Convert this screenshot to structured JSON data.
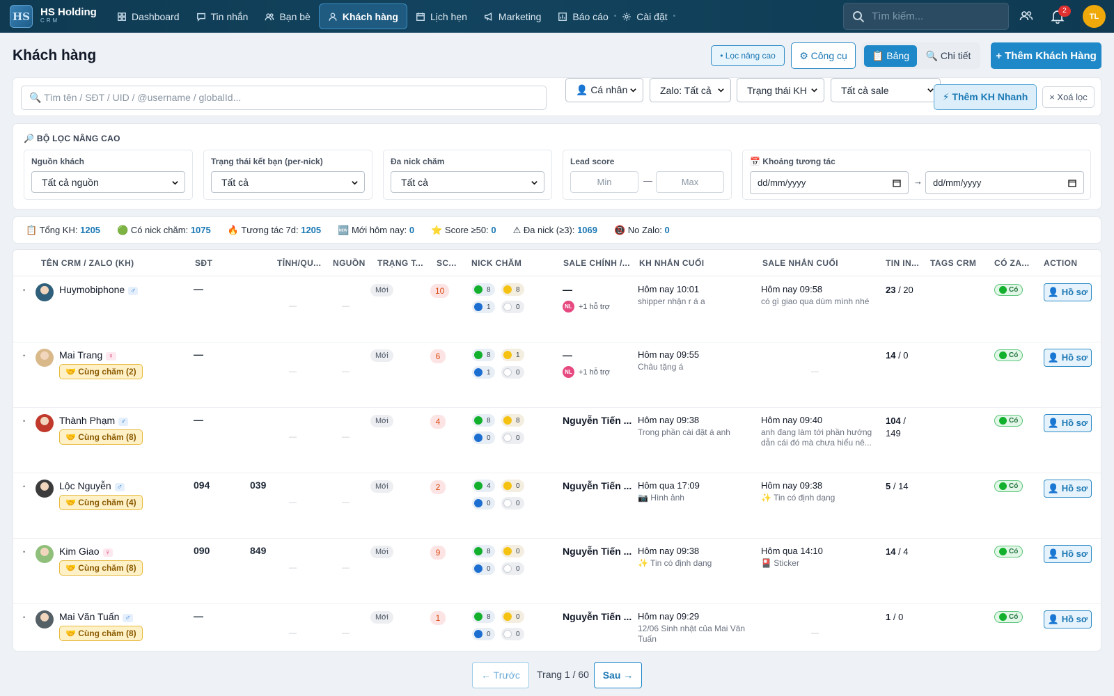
{
  "app": {
    "logo_text": "HS",
    "brand_name": "HS Holding",
    "brand_sub": "CRM"
  },
  "nav": [
    {
      "label": "Dashboard",
      "icon": "grid-icon"
    },
    {
      "label": "Tin nhắn",
      "icon": "chat-icon"
    },
    {
      "label": "Bạn bè",
      "icon": "friends-icon"
    },
    {
      "label": "Khách hàng",
      "icon": "user-icon",
      "active": true
    },
    {
      "label": "Lịch hẹn",
      "icon": "calendar-icon"
    },
    {
      "label": "Marketing",
      "icon": "megaphone-icon"
    },
    {
      "label": "Báo cáo",
      "icon": "chart-icon"
    },
    {
      "label": "Cài đặt",
      "icon": "gear-icon"
    }
  ],
  "topbar": {
    "search_placeholder": "Tìm kiếm...",
    "notif_count": "2",
    "user_initials": "TL"
  },
  "page": {
    "title": "Khách hàng"
  },
  "actions": {
    "filter_adv": "• Lọc nâng cao",
    "tools": "⚙ Công cụ",
    "view_table": "📋 Bảng",
    "view_detail": "🔍 Chi tiết",
    "add_customer": "+ Thêm Khách Hàng"
  },
  "filterbar": {
    "search_placeholder": "🔍 Tìm tên / SĐT / UID / @username / globalId...",
    "type_select": "👤 Cá nhân",
    "zalo_select": "Zalo: Tất cả",
    "status_select": "Trạng thái KH",
    "sale_select": "Tất cả sale",
    "quick_add": "⚡ Thêm KH Nhanh",
    "clear": "× Xoá lọc"
  },
  "advanced": {
    "title": "🔎 BỘ LỌC NÂNG CAO",
    "source": {
      "label": "Nguồn khách",
      "value": "Tất cả nguồn"
    },
    "friend_status": {
      "label": "Trạng thái kết bạn (per-nick)",
      "value": "Tất cả"
    },
    "multi_nick": {
      "label": "Đa nick chăm",
      "value": "Tất cả"
    },
    "lead_score": {
      "label": "Lead score",
      "min_placeholder": "Min",
      "sep": "—",
      "max_placeholder": "Max"
    },
    "interaction": {
      "label": "📅 Khoảng tương tác",
      "from": "dd/mm/yyyy",
      "arrow": "→",
      "to": "dd/mm/yyyy"
    }
  },
  "stats": [
    {
      "label": "📋 Tổng KH:",
      "value": "1205"
    },
    {
      "label": "🟢 Có nick chăm:",
      "value": "1075"
    },
    {
      "label": "🔥 Tương tác 7d:",
      "value": "1205"
    },
    {
      "label": "🆕 Mới hôm nay:",
      "value": "0"
    },
    {
      "label": "⭐ Score ≥50:",
      "value": "0"
    },
    {
      "label": "⚠ Đa nick (≥3):",
      "value": "1069"
    },
    {
      "label": "📵 No Zalo:",
      "value": "0"
    }
  ],
  "table": {
    "columns": [
      "TÊN CRM / ZALO (KH)",
      "SĐT",
      "TỈNH/QU...",
      "NGUỒN",
      "TRẠNG T...",
      "SC...",
      "NICK CHĂM",
      "SALE CHÍNH /...",
      "KH NHẮN CUỐI",
      "SALE NHẮN CUỐI",
      "TIN IN...",
      "TAGS CRM",
      "CÓ ZA...",
      "ACTION"
    ],
    "rows": [
      {
        "name": "Huymobiphone",
        "gender": "♂",
        "cham": "",
        "phone_a": "—",
        "phone_b": "",
        "status": "Mới",
        "score": "10",
        "nick": [
          "8",
          "8",
          "1",
          "0"
        ],
        "sale": "—",
        "hotro": "+1 hỗ trợ",
        "kh_time": "Hôm nay 10:01",
        "kh_msg": "shipper nhận r á a",
        "sale_time": "Hôm nay 09:58",
        "sale_msg": "có gì giao qua dùm mình nhé",
        "tin": "23",
        "tin2": " / 20",
        "zalo": "Có",
        "action": "👤 Hồ sơ"
      },
      {
        "name": "Mai Trang",
        "gender": "♀",
        "cham": "🤝 Cùng chăm (2)",
        "phone_a": "—",
        "phone_b": "",
        "status": "Mới",
        "score": "6",
        "nick": [
          "8",
          "1",
          "1",
          "0"
        ],
        "sale": "—",
        "hotro": "+1 hỗ trợ",
        "kh_time": "Hôm nay 09:55",
        "kh_msg": "Châu tặng á",
        "sale_time": "",
        "sale_msg": "",
        "tin": "14",
        "tin2": " / 0",
        "zalo": "Có",
        "action": "👤 Hồ sơ"
      },
      {
        "name": "Thành Phạm",
        "gender": "♂",
        "cham": "🤝 Cùng chăm (8)",
        "phone_a": "—",
        "phone_b": "",
        "status": "Mới",
        "score": "4",
        "nick": [
          "8",
          "8",
          "0",
          "0"
        ],
        "sale": "Nguyễn Tiến ...",
        "hotro": "",
        "kh_time": "Hôm nay 09:38",
        "kh_msg": "Trong phần cài đặt á anh",
        "sale_time": "Hôm nay 09:40",
        "sale_msg": "anh đang làm tới phần hướng dẫn cái đó mà chưa hiểu nê...",
        "tin": "104",
        "tin2": " / 149",
        "zalo": "Có",
        "action": "👤 Hồ sơ"
      },
      {
        "name": "Lộc Nguyễn",
        "gender": "♂",
        "cham": "🤝 Cùng chăm (4)",
        "phone_a": "094",
        "phone_b": "039",
        "status": "Mới",
        "score": "2",
        "nick": [
          "4",
          "0",
          "0",
          "0"
        ],
        "sale": "Nguyễn Tiến ...",
        "hotro": "",
        "kh_time": "Hôm qua 17:09",
        "kh_msg": "📷 Hình ảnh",
        "sale_time": "Hôm nay 09:38",
        "sale_msg": "✨ Tin có định dạng",
        "tin": "5",
        "tin2": " / 14",
        "zalo": "Có",
        "action": "👤 Hồ sơ"
      },
      {
        "name": "Kim Giao",
        "gender": "♀",
        "cham": "🤝 Cùng chăm (8)",
        "phone_a": "090",
        "phone_b": "849",
        "status": "Mới",
        "score": "9",
        "nick": [
          "8",
          "0",
          "0",
          "0"
        ],
        "sale": "Nguyễn Tiến ...",
        "hotro": "",
        "kh_time": "Hôm nay 09:38",
        "kh_msg": "✨ Tin có định dạng",
        "sale_time": "Hôm qua 14:10",
        "sale_msg": "🎴 Sticker",
        "tin": "14",
        "tin2": " / 4",
        "zalo": "Có",
        "action": "👤 Hồ sơ"
      },
      {
        "name": "Mai Văn Tuấn",
        "gender": "♂",
        "cham": "🤝 Cùng chăm (8)",
        "phone_a": "—",
        "phone_b": "",
        "status": "Mới",
        "score": "1",
        "nick": [
          "8",
          "0",
          "0",
          "0"
        ],
        "sale": "Nguyễn Tiến ...",
        "hotro": "",
        "kh_time": "Hôm nay 09:29",
        "kh_msg": "12/06 Sinh nhật của Mai Văn Tuấn",
        "sale_time": "",
        "sale_msg": "",
        "tin": "1",
        "tin2": " / 0",
        "zalo": "Có",
        "action": "👤 Hồ sơ"
      }
    ]
  },
  "pagination": {
    "prev": "← Trước",
    "info": "Trang 1 / 60",
    "next": "Sau →"
  },
  "colors": {
    "primary": "#1f88c8",
    "topbar": "#0f3a52",
    "success": "#12b02c",
    "warning": "#f0a90a",
    "danger": "#e03131"
  }
}
